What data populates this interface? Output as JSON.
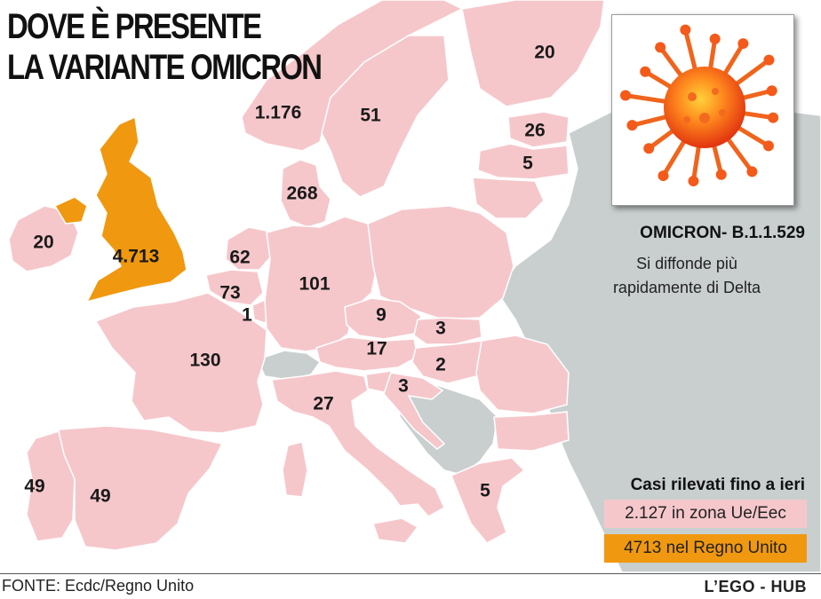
{
  "title": {
    "line1": "DOVE È PRESENTE",
    "line2": "LA VARIANTE OMICRON"
  },
  "variant": {
    "name": "OMICRON- B.1.1.529",
    "desc_line1": "Si diffonde più",
    "desc_line2": "rapidamente di Delta",
    "icon": "coronavirus-icon"
  },
  "legend": {
    "title": "Casi rilevati fino a ieri",
    "eu_label": "2.127 in zona Ue/Eec",
    "uk_label": "4713 nel Regno Unito"
  },
  "colors": {
    "eu_eea": "#f5c7cb",
    "uk": "#f0980f",
    "other": "#c9cfcf",
    "sea": "#ffffff"
  },
  "cases": [
    {
      "country": "Regno Unito",
      "value": "4.713"
    },
    {
      "country": "Irlanda",
      "value": "20"
    },
    {
      "country": "Norvegia",
      "value": "1.176"
    },
    {
      "country": "Svezia",
      "value": "51"
    },
    {
      "country": "Finlandia",
      "value": "20"
    },
    {
      "country": "Estonia",
      "value": "26"
    },
    {
      "country": "Lettonia",
      "value": "5"
    },
    {
      "country": "Danimarca",
      "value": "268"
    },
    {
      "country": "Paesi Bassi",
      "value": "62"
    },
    {
      "country": "Belgio",
      "value": "73"
    },
    {
      "country": "Lussemburgo",
      "value": "1"
    },
    {
      "country": "Germania",
      "value": "101"
    },
    {
      "country": "Francia",
      "value": "130"
    },
    {
      "country": "Repubblica Ceca",
      "value": "9"
    },
    {
      "country": "Slovacchia",
      "value": "3"
    },
    {
      "country": "Austria",
      "value": "17"
    },
    {
      "country": "Ungheria",
      "value": "2"
    },
    {
      "country": "Croazia",
      "value": "3"
    },
    {
      "country": "Italia",
      "value": "27"
    },
    {
      "country": "Portogallo",
      "value": "49"
    },
    {
      "country": "Spagna",
      "value": "49"
    },
    {
      "country": "Grecia",
      "value": "5"
    }
  ],
  "footer": {
    "source": "FONTE: Ecdc/Regno Unito",
    "credit": "L’EGO - HUB"
  }
}
